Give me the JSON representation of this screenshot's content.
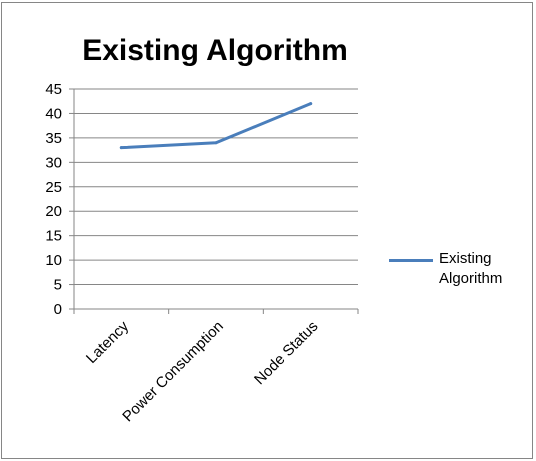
{
  "chart_data": {
    "type": "line",
    "title": "Existing Algorithm",
    "xlabel": "",
    "ylabel": "",
    "categories": [
      "Latency",
      "Power Consumption",
      "Node Status"
    ],
    "series": [
      {
        "name": "Existing Algorithm",
        "values": [
          33,
          34,
          42
        ],
        "color": "#4a7ebb"
      }
    ],
    "ylim": [
      0,
      45
    ],
    "yticks": [
      0,
      5,
      10,
      15,
      20,
      25,
      30,
      35,
      40,
      45
    ],
    "grid": true,
    "legend_position": "right"
  }
}
